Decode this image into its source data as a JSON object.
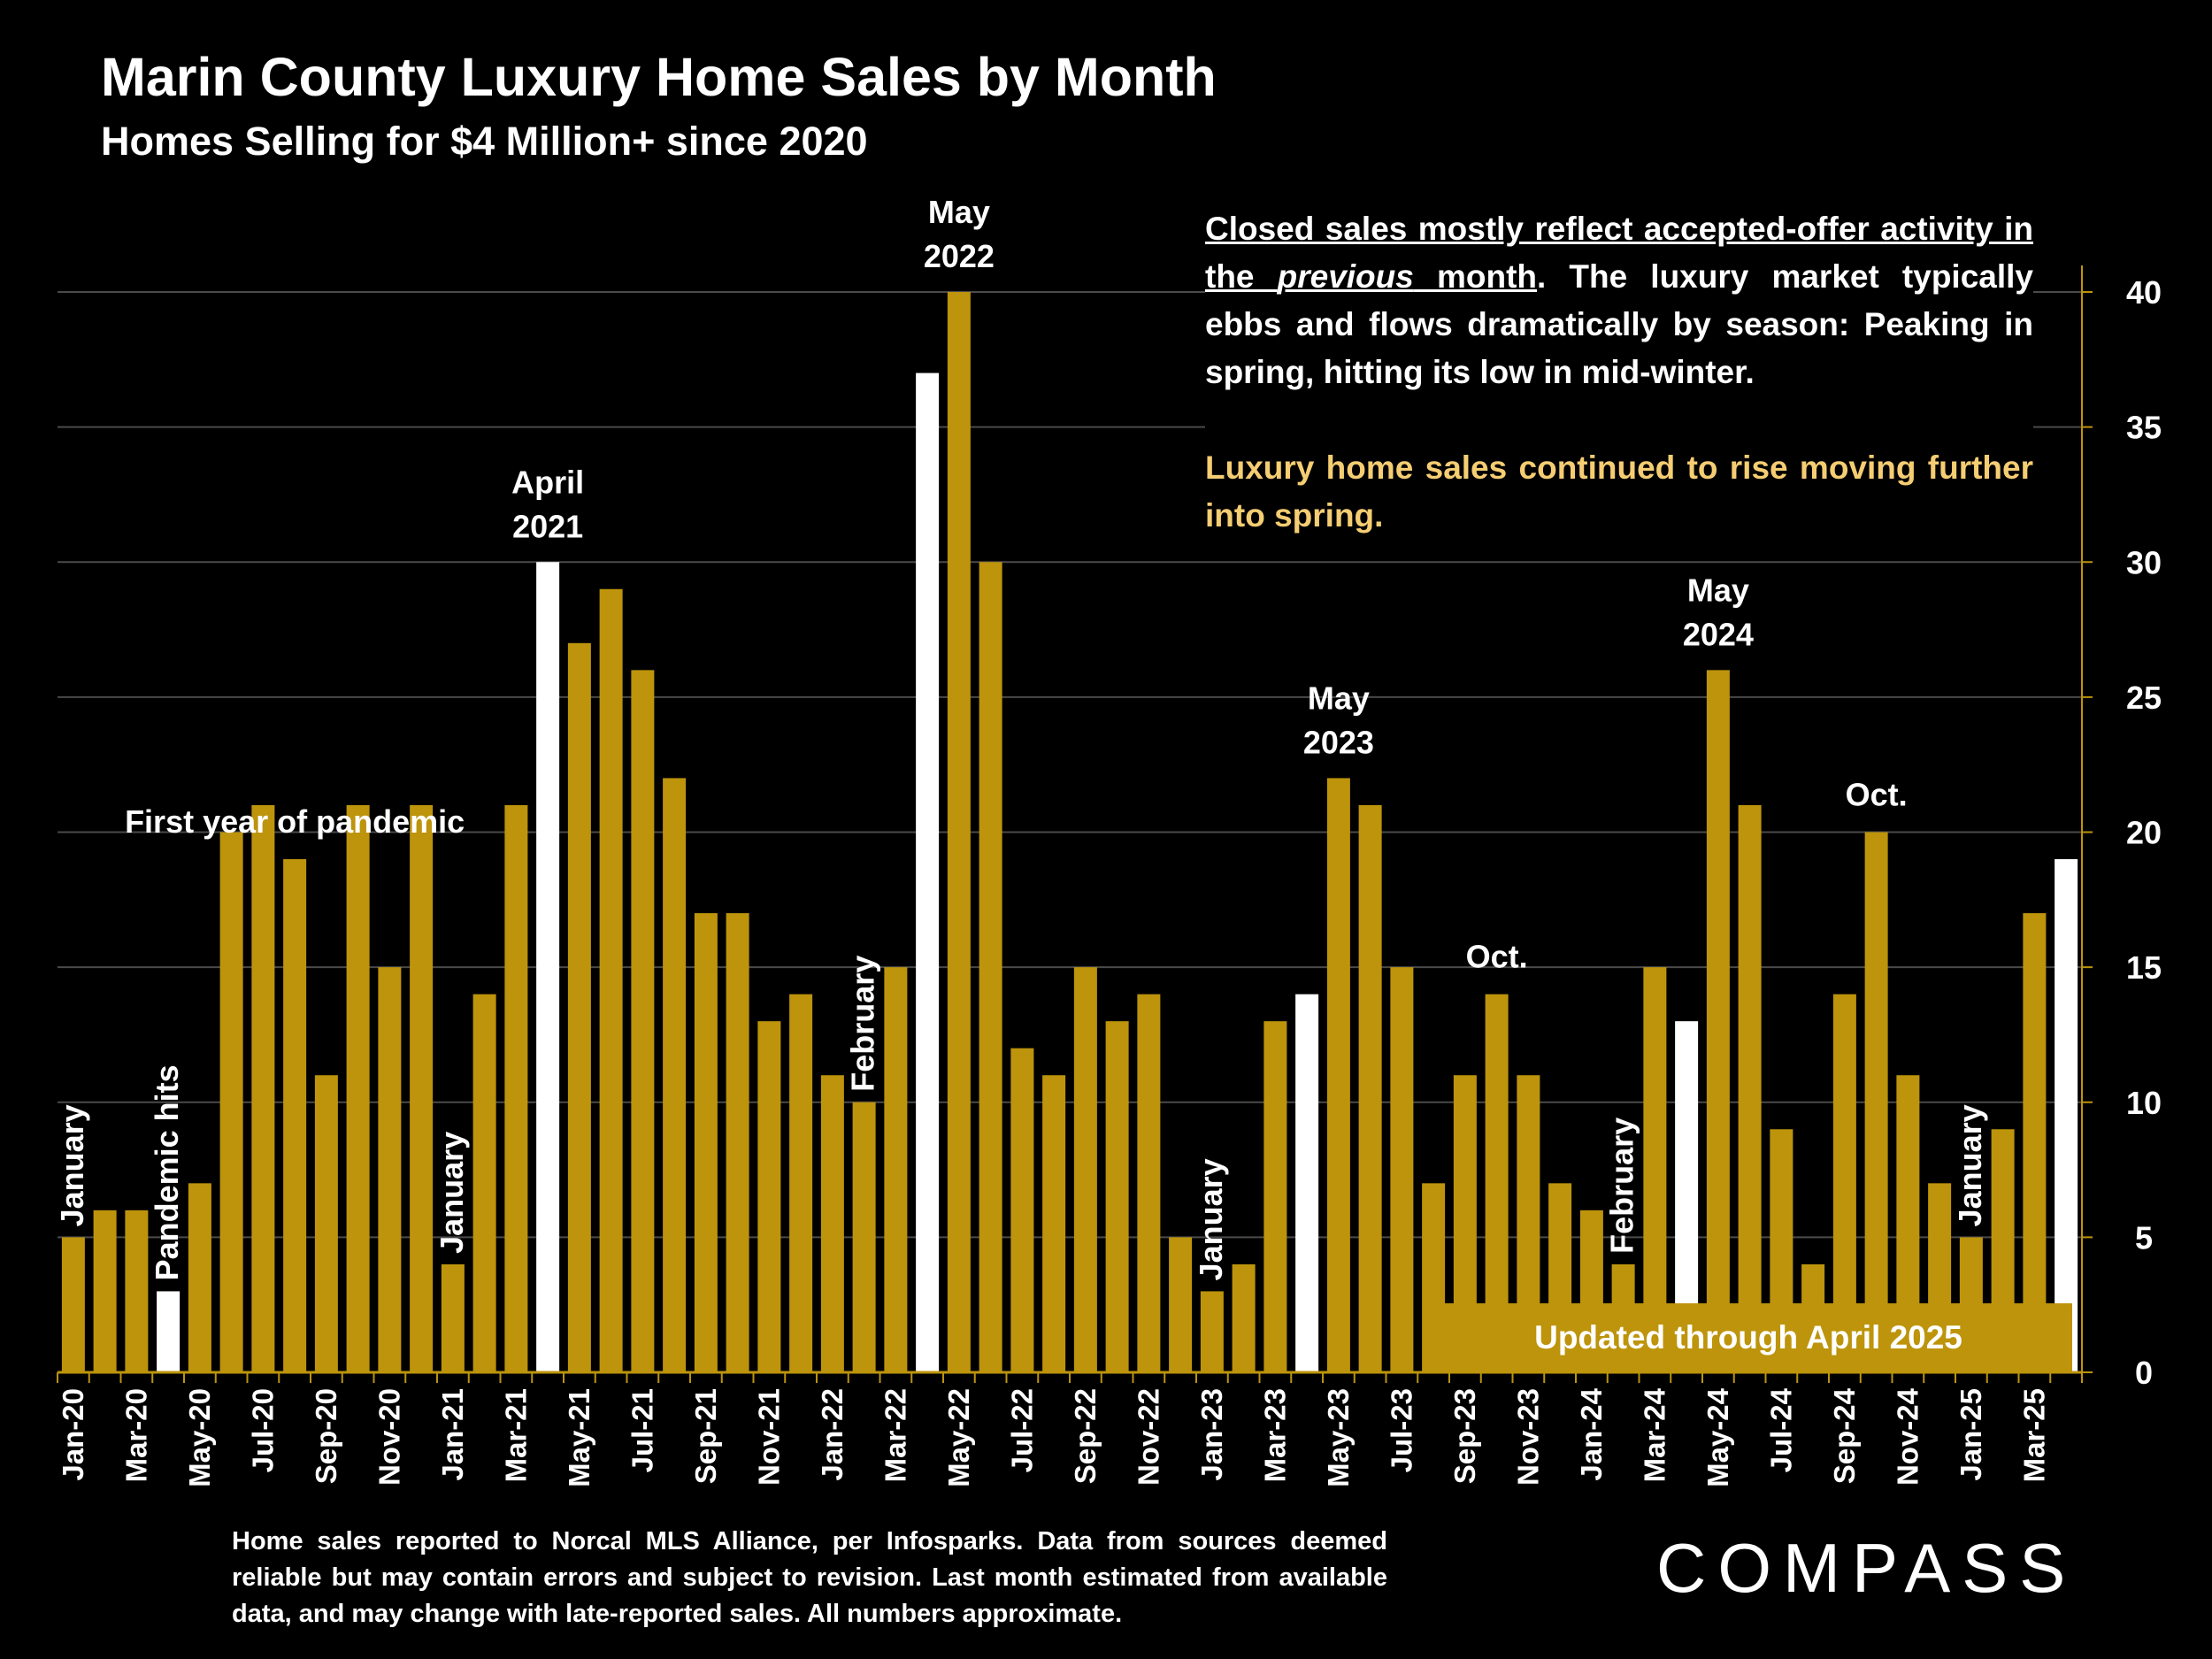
{
  "header": {
    "title": "Marin County Luxury Home Sales by Month",
    "subtitle": "Homes Selling for $4 Million+ since 2020"
  },
  "note": {
    "part1": "Closed sales mostly reflect accepted-offer activity in the ",
    "italic": "previous",
    "part2": " month",
    "part3": ". The luxury market typically ebbs and flows dramatically by season: Peaking in spring, hitting its low in mid-winter.",
    "gold": "Luxury home sales continued to rise moving further into spring."
  },
  "updated_label": "Updated through April 2025",
  "footnote": "Home sales reported to Norcal MLS Alliance, per Infosparks. Data from sources deemed reliable but may contain errors and subject to revision.  Last month estimated from available data, and may change with late-reported sales. All numbers approximate.",
  "brand": "COMPASS",
  "colors": {
    "bar": "#bd940b",
    "highlight": "#ffffff",
    "gold_text": "#f5cd72",
    "background": "#000000"
  },
  "chart_data": {
    "type": "bar",
    "title": "Marin County Luxury Home Sales by Month",
    "ylim": [
      0,
      40
    ],
    "yticks": [
      0,
      5,
      10,
      15,
      20,
      25,
      30,
      35,
      40
    ],
    "y_axis_position": "right",
    "grid": true,
    "categories": [
      "Jan-20",
      "Feb-20",
      "Mar-20",
      "Apr-20",
      "May-20",
      "Jun-20",
      "Jul-20",
      "Aug-20",
      "Sep-20",
      "Oct-20",
      "Nov-20",
      "Dec-20",
      "Jan-21",
      "Feb-21",
      "Mar-21",
      "Apr-21",
      "May-21",
      "Jun-21",
      "Jul-21",
      "Aug-21",
      "Sep-21",
      "Oct-21",
      "Nov-21",
      "Dec-21",
      "Jan-22",
      "Feb-22",
      "Mar-22",
      "Apr-22",
      "May-22",
      "Jun-22",
      "Jul-22",
      "Aug-22",
      "Sep-22",
      "Oct-22",
      "Nov-22",
      "Dec-22",
      "Jan-23",
      "Feb-23",
      "Mar-23",
      "Apr-23",
      "May-23",
      "Jun-23",
      "Jul-23",
      "Aug-23",
      "Sep-23",
      "Oct-23",
      "Nov-23",
      "Dec-23",
      "Jan-24",
      "Feb-24",
      "Mar-24",
      "Apr-24",
      "May-24",
      "Jun-24",
      "Jul-24",
      "Aug-24",
      "Sep-24",
      "Oct-24",
      "Nov-24",
      "Dec-24",
      "Jan-25",
      "Feb-25",
      "Mar-25",
      "Apr-25"
    ],
    "values": [
      5,
      6,
      6,
      3,
      7,
      20,
      21,
      19,
      11,
      21,
      15,
      21,
      4,
      14,
      21,
      30,
      27,
      29,
      26,
      22,
      17,
      17,
      13,
      14,
      11,
      10,
      15,
      37,
      40,
      30,
      12,
      11,
      15,
      13,
      14,
      5,
      3,
      4,
      13,
      14,
      22,
      21,
      15,
      7,
      11,
      14,
      11,
      7,
      6,
      4,
      15,
      13,
      26,
      21,
      9,
      4,
      14,
      20,
      11,
      7,
      5,
      9,
      17,
      19
    ],
    "highlighted": [
      "Apr-20",
      "Apr-21",
      "Apr-22",
      "Apr-23",
      "Apr-24",
      "Apr-25"
    ],
    "x_tick_labels": [
      "Jan-20",
      "Mar-20",
      "May-20",
      "Jul-20",
      "Sep-20",
      "Nov-20",
      "Jan-21",
      "Mar-21",
      "May-21",
      "Jul-21",
      "Sep-21",
      "Nov-21",
      "Jan-22",
      "Mar-22",
      "May-22",
      "Jul-22",
      "Sep-22",
      "Nov-22",
      "Jan-23",
      "Mar-23",
      "May-23",
      "Jul-23",
      "Sep-23",
      "Nov-23",
      "Jan-24",
      "Mar-24",
      "May-24",
      "Jul-24",
      "Sep-24",
      "Nov-24",
      "Jan-25",
      "Mar-25"
    ],
    "annotations": [
      {
        "text": "January",
        "month": "Jan-20",
        "orientation": "vertical"
      },
      {
        "text": "Pandemic hits",
        "month": "Apr-20",
        "orientation": "vertical"
      },
      {
        "text": "First year of pandemic",
        "month": "Aug-20",
        "orientation": "horizontal"
      },
      {
        "text": "January",
        "month": "Jan-21",
        "orientation": "vertical"
      },
      {
        "text": "April 2021",
        "lines": [
          "April",
          "2021"
        ],
        "month": "Apr-21",
        "orientation": "horizontal"
      },
      {
        "text": "February",
        "month": "Feb-22",
        "orientation": "vertical"
      },
      {
        "text": "May 2022",
        "lines": [
          "May",
          "2022"
        ],
        "month": "May-22",
        "orientation": "horizontal"
      },
      {
        "text": "January",
        "month": "Jan-23",
        "orientation": "vertical"
      },
      {
        "text": "May 2023",
        "lines": [
          "May",
          "2023"
        ],
        "month": "May-23",
        "orientation": "horizontal"
      },
      {
        "text": "Oct.",
        "month": "Oct-23",
        "orientation": "horizontal"
      },
      {
        "text": "February",
        "month": "Feb-24",
        "orientation": "vertical"
      },
      {
        "text": "May 2024",
        "lines": [
          "May",
          "2024"
        ],
        "month": "May-24",
        "orientation": "horizontal"
      },
      {
        "text": "Oct.",
        "month": "Oct-24",
        "orientation": "horizontal"
      },
      {
        "text": "January",
        "month": "Jan-25",
        "orientation": "vertical"
      }
    ]
  }
}
